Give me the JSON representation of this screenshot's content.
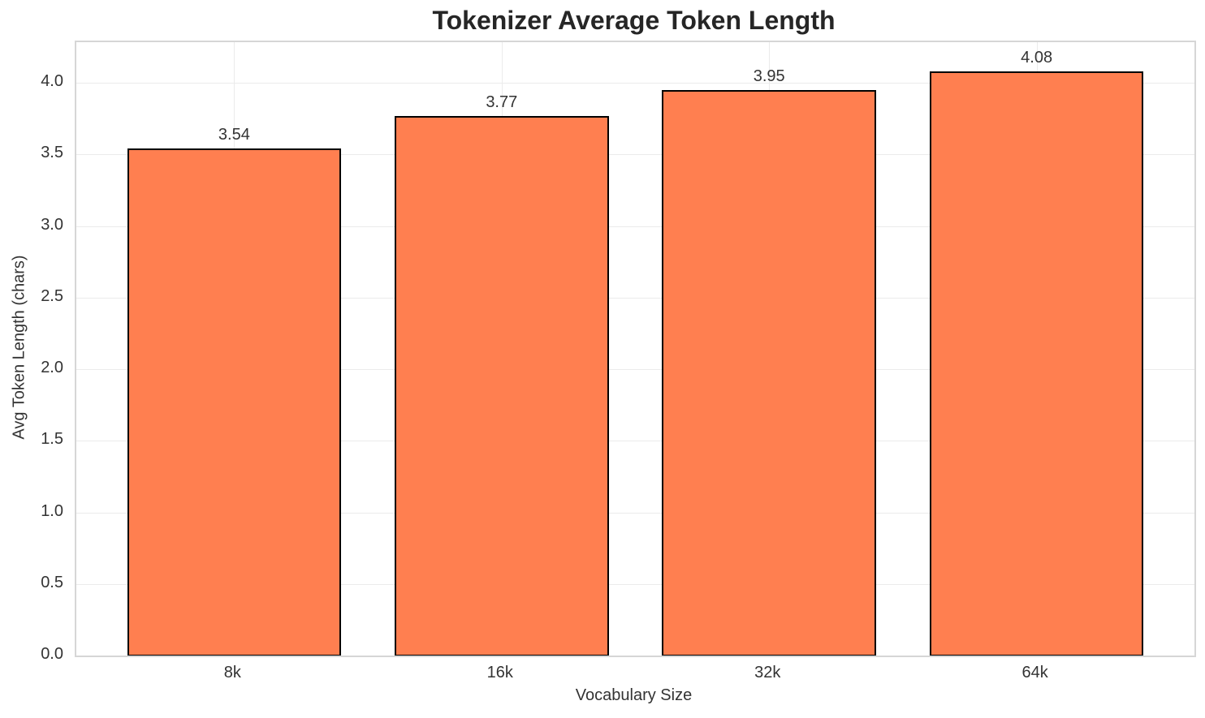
{
  "chart_data": {
    "type": "bar",
    "title": "Tokenizer Average Token Length",
    "xlabel": "Vocabulary Size",
    "ylabel": "Avg Token Length (chars)",
    "categories": [
      "8k",
      "16k",
      "32k",
      "64k"
    ],
    "values": [
      3.54,
      3.77,
      3.95,
      4.08
    ],
    "value_labels": [
      "3.54",
      "3.77",
      "3.95",
      "4.08"
    ],
    "yticks": [
      0.0,
      0.5,
      1.0,
      1.5,
      2.0,
      2.5,
      3.0,
      3.5,
      4.0
    ],
    "ytick_labels": [
      "0.0",
      "0.5",
      "1.0",
      "1.5",
      "2.0",
      "2.5",
      "3.0",
      "3.5",
      "4.0"
    ],
    "ylim": [
      0,
      4.284
    ],
    "grid": true,
    "legend_position": "none",
    "colors": {
      "bar_fill": "#FF7F50",
      "bar_edge": "#000000",
      "grid": "#ebebeb",
      "spine": "#d6d6d6",
      "title_text": "#262626",
      "tick_text": "#333333",
      "background": "#ffffff"
    }
  }
}
